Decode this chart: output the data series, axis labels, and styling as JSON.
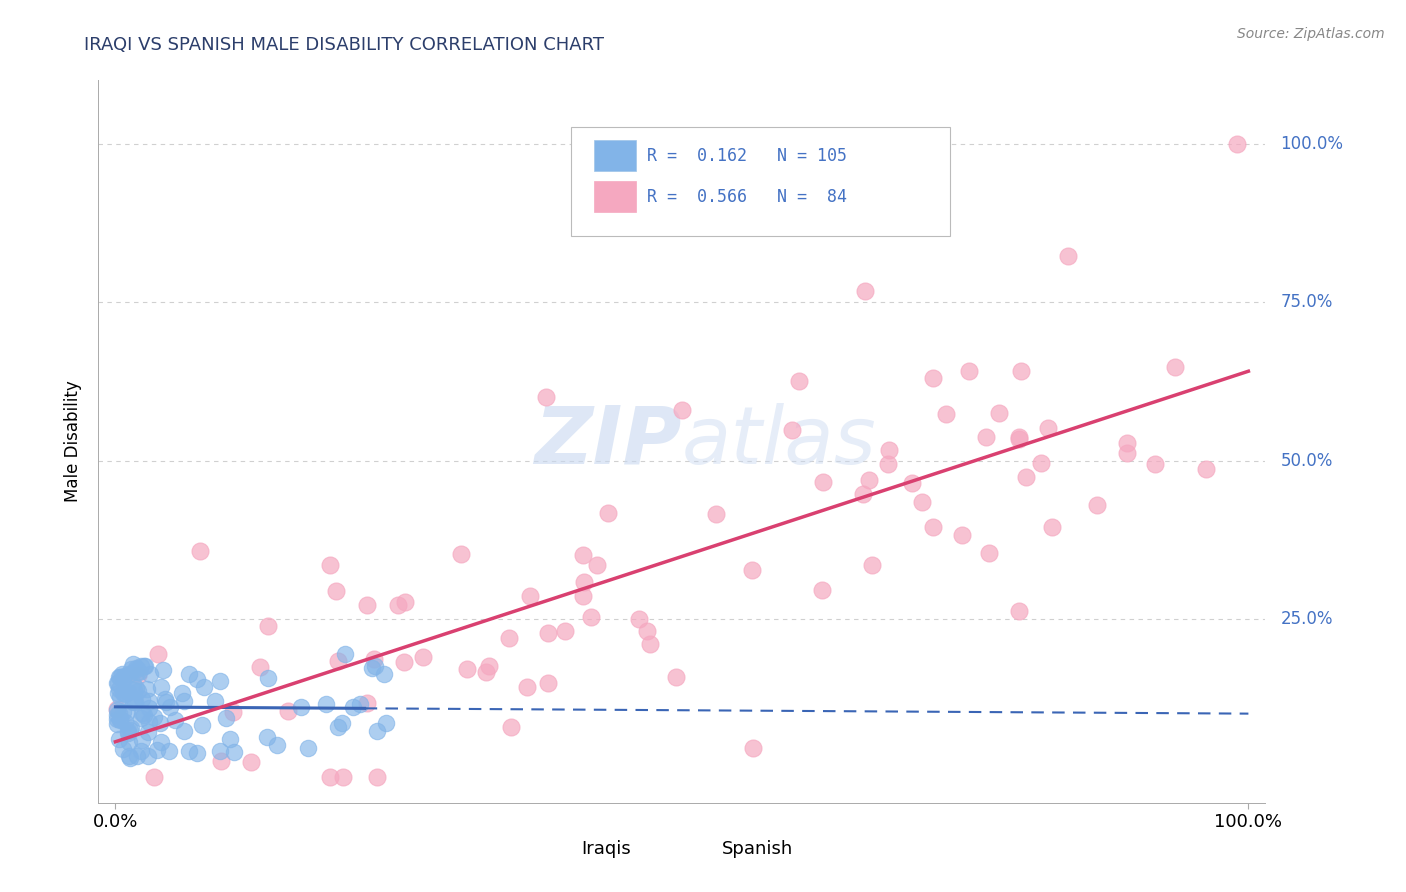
{
  "title": "IRAQI VS SPANISH MALE DISABILITY CORRELATION CHART",
  "source": "Source: ZipAtlas.com",
  "ylabel": "Male Disability",
  "iraqi_color": "#82b4e8",
  "iraqi_edge_color": "#5a90cc",
  "spanish_color": "#f5a8c0",
  "spanish_edge_color": "#e07090",
  "trendline_iraqi_color": "#3a65b5",
  "trendline_spanish_color": "#d94070",
  "watermark_color": "#c8d8f0",
  "grid_color": "#d0d0d0",
  "right_label_color": "#4472c4",
  "title_color": "#2c3e6b",
  "legend_text_color_R": "#000000",
  "legend_text_color_N": "#4472c4",
  "iraqi_R": 0.162,
  "iraqi_N": 105,
  "spanish_R": 0.566,
  "spanish_N": 84,
  "seed": 12345
}
